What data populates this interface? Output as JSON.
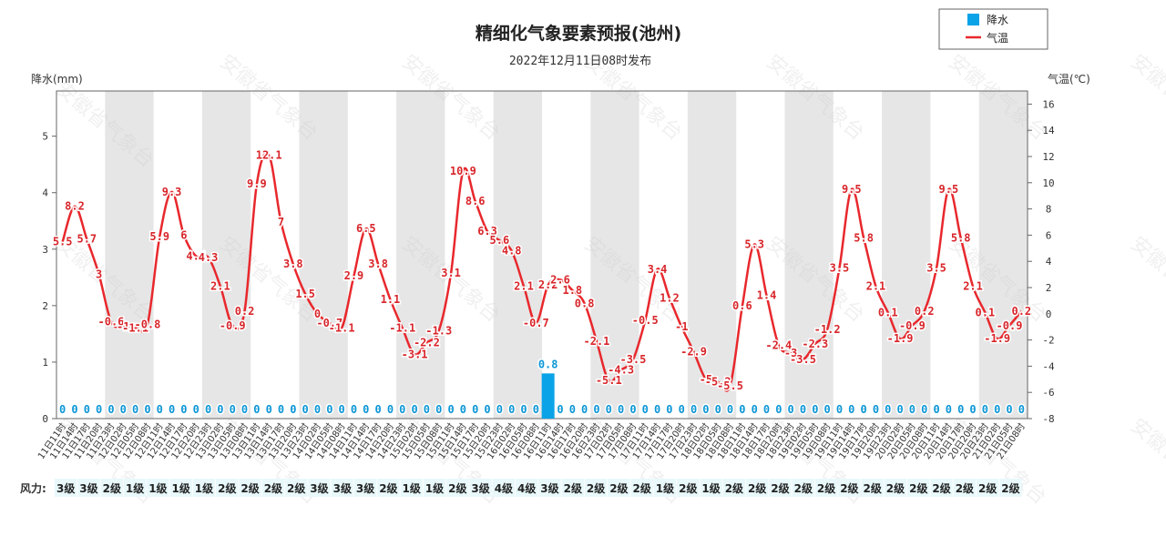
{
  "chart_data": {
    "type": "bar+line",
    "title": "精细化气象要素预报(池州)",
    "subtitle": "2022年12月11日08时发布",
    "ylabel_left": "降水(mm)",
    "ylabel_right": "气温(℃)",
    "ylim_left": [
      0,
      5.8
    ],
    "ylim_right": [
      -8,
      17
    ],
    "yticks_left": [
      0,
      1,
      2,
      3,
      4,
      5
    ],
    "yticks_right": [
      -8,
      -6,
      -4,
      -2,
      0,
      2,
      4,
      6,
      8,
      10,
      12,
      14,
      16
    ],
    "legend": {
      "position": "top-right",
      "precip": "降水",
      "temp": "气温"
    },
    "wind_label": "风力:",
    "watermark": "安徽省气象台",
    "colors": {
      "precip": "#0aa3e8",
      "temp": "#e8282d",
      "band": "#e6e6e6"
    },
    "x": [
      "11日11时",
      "11日14时",
      "11日17时",
      "11日20时",
      "11日23时",
      "12日02时",
      "12日05时",
      "12日08时",
      "12日11时",
      "12日14时",
      "12日17时",
      "12日20时",
      "12日23时",
      "13日02时",
      "13日05时",
      "13日08时",
      "13日11时",
      "13日14时",
      "13日17时",
      "13日20时",
      "13日23时",
      "14日02时",
      "14日05时",
      "14日08时",
      "14日11时",
      "14日14时",
      "14日17时",
      "14日20时",
      "14日23时",
      "15日02时",
      "15日05时",
      "15日08时",
      "15日11时",
      "15日14时",
      "15日17时",
      "15日20时",
      "15日23时",
      "16日02时",
      "16日05时",
      "16日08时",
      "16日11时",
      "16日14时",
      "16日17时",
      "16日20时",
      "16日23时",
      "17日02时",
      "17日05时",
      "17日08时",
      "17日11时",
      "17日14时",
      "17日17时",
      "17日20时",
      "17日23时",
      "18日02时",
      "18日05时",
      "18日08时",
      "18日11时",
      "18日14时",
      "18日17时",
      "18日20时",
      "18日23时",
      "19日02时",
      "19日05时",
      "19日08时",
      "19日11时",
      "19日14时",
      "19日17时",
      "19日20时",
      "19日23时",
      "20日02时",
      "20日05时",
      "20日08时",
      "20日11时",
      "20日14时",
      "20日17时",
      "20日20时",
      "20日23时",
      "21日02时",
      "21日05时",
      "21日08时"
    ],
    "temperature": [
      5.5,
      8.2,
      5.7,
      3,
      -0.6,
      -1,
      -1.1,
      -0.8,
      5.9,
      9.3,
      6,
      4.4,
      4.3,
      2.1,
      -0.9,
      0.2,
      9.9,
      12.1,
      7,
      3.8,
      1.5,
      0,
      -0.7,
      -1.1,
      2.9,
      6.5,
      3.8,
      1.1,
      -1.1,
      -3.1,
      -2.2,
      -1.3,
      3.1,
      10.9,
      8.6,
      6.3,
      5.6,
      4.8,
      2.1,
      -0.7,
      2.2,
      2.6,
      1.8,
      0.8,
      -2.1,
      -5.1,
      -4.3,
      -3.5,
      -0.5,
      3.4,
      1.2,
      -1,
      -2.9,
      -5,
      -5.2,
      -5.5,
      0.6,
      5.3,
      1.4,
      -2.4,
      -3,
      -3.5,
      -2.3,
      -1.2,
      3.5,
      9.5,
      5.8,
      2.1,
      0.1,
      -1.9,
      -0.9,
      0.2,
      3.5,
      9.5,
      5.8,
      2.1,
      0.1,
      -1.9,
      -0.9,
      0.2
    ],
    "temperature_labels": [
      "5.5",
      "8.2",
      "5.7",
      "3",
      "-0.6",
      "-1",
      "-1.1",
      "-0.8",
      "5.9",
      "9.3",
      "6",
      "4.4",
      "4.3",
      "2.1",
      "-0.9",
      "0.2",
      "9.9",
      "12.1",
      "7",
      "3.8",
      "1.5",
      "0",
      "-0.7",
      "-1.1",
      "2.9",
      "6.5",
      "3.8",
      "1.1",
      "-1.1",
      "-3.1",
      "-2.2",
      "-1.3",
      "3.1",
      "10.9",
      "8.6",
      "6.3",
      "5.6",
      "4.8",
      "2.1",
      "-0.7",
      "2.2",
      "2.6",
      "1.8",
      "0.8",
      "-2.1",
      "-5.1",
      "-4.3",
      "-3.5",
      "-0.5",
      "3.4",
      "1.2",
      "-1",
      "-2.9",
      "-5",
      "-5.2",
      "-5.5",
      "0.6",
      "5.3",
      "1.4",
      "-2.4",
      "-3",
      "-3.5",
      "-2.3",
      "-1.2",
      "3.5",
      "9.5",
      "5.8",
      "2.1",
      "0.1",
      "-1.9",
      "-0.9",
      "0.2",
      "3.5",
      "9.5",
      "5.8",
      "2.1",
      "0.1",
      "-1.9",
      "-0.9",
      "0.2"
    ],
    "precipitation": [
      0,
      0,
      0,
      0,
      0,
      0,
      0,
      0,
      0,
      0,
      0,
      0,
      0,
      0,
      0,
      0,
      0,
      0,
      0,
      0,
      0,
      0,
      0,
      0,
      0,
      0,
      0,
      0,
      0,
      0,
      0,
      0,
      0,
      0,
      0,
      0,
      0,
      0,
      0,
      0,
      0.8,
      0,
      0,
      0,
      0,
      0,
      0,
      0,
      0,
      0,
      0,
      0,
      0,
      0,
      0,
      0,
      0,
      0,
      0,
      0,
      0,
      0,
      0,
      0,
      0,
      0,
      0,
      0,
      0,
      0,
      0,
      0,
      0,
      0,
      0,
      0,
      0,
      0,
      0,
      0
    ],
    "precipitation_labels": [
      "0",
      "0",
      "0",
      "0",
      "0",
      "0",
      "0",
      "0",
      "0",
      "0",
      "0",
      "0",
      "0",
      "0",
      "0",
      "0",
      "0",
      "0",
      "0",
      "0",
      "0",
      "0",
      "0",
      "0",
      "0",
      "0",
      "0",
      "0",
      "0",
      "0",
      "0",
      "0",
      "0",
      "0",
      "0",
      "0",
      "0",
      "0",
      "0",
      "0",
      "0.8",
      "0",
      "0",
      "0",
      "0",
      "0",
      "0",
      "0",
      "0",
      "0",
      "0",
      "0",
      "0",
      "0",
      "0",
      "0",
      "0",
      "0",
      "0",
      "0",
      "0",
      "0",
      "0",
      "0",
      "0",
      "0",
      "0",
      "0",
      "0",
      "0",
      "0",
      "0",
      "0",
      "0",
      "0",
      "0",
      "0",
      "0",
      "0",
      "0"
    ],
    "wind": [
      "3级",
      "3级",
      "2级",
      "1级",
      "1级",
      "1级",
      "1级",
      "2级",
      "2级",
      "2级",
      "2级",
      "3级",
      "3级",
      "3级",
      "2级",
      "1级",
      "1级",
      "2级",
      "3级",
      "4级",
      "4级",
      "3级",
      "2级",
      "2级",
      "2级",
      "2级",
      "1级",
      "2级",
      "1级",
      "2级",
      "2级",
      "2级",
      "2级",
      "2级",
      "2级",
      "2级",
      "2级",
      "2级",
      "2级",
      "2级",
      "2级",
      "2级"
    ]
  }
}
